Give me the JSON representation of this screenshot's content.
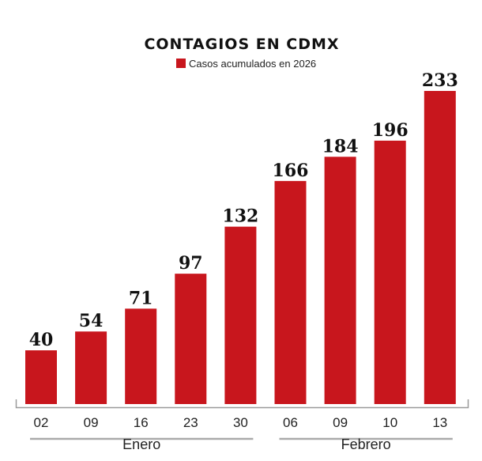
{
  "chart_data": {
    "type": "bar",
    "title": "CONTAGIOS EN CDMX",
    "legend": {
      "label": "Casos acumulados en 2026",
      "placement": "top-center"
    },
    "categories": [
      "02",
      "09",
      "16",
      "23",
      "30",
      "06",
      "09",
      "10",
      "13"
    ],
    "groups": [
      {
        "label": "Enero",
        "categories": [
          "02",
          "09",
          "16",
          "23",
          "30"
        ]
      },
      {
        "label": "Febrero",
        "categories": [
          "06",
          "09",
          "10",
          "13"
        ]
      }
    ],
    "series": [
      {
        "name": "Casos acumulados en 2026",
        "values": [
          40,
          54,
          71,
          97,
          132,
          166,
          184,
          196,
          233
        ]
      }
    ],
    "ylim": [
      0,
      233
    ],
    "grid": false,
    "colors": {
      "bar": "#c8161d",
      "axis": "#999999"
    }
  }
}
